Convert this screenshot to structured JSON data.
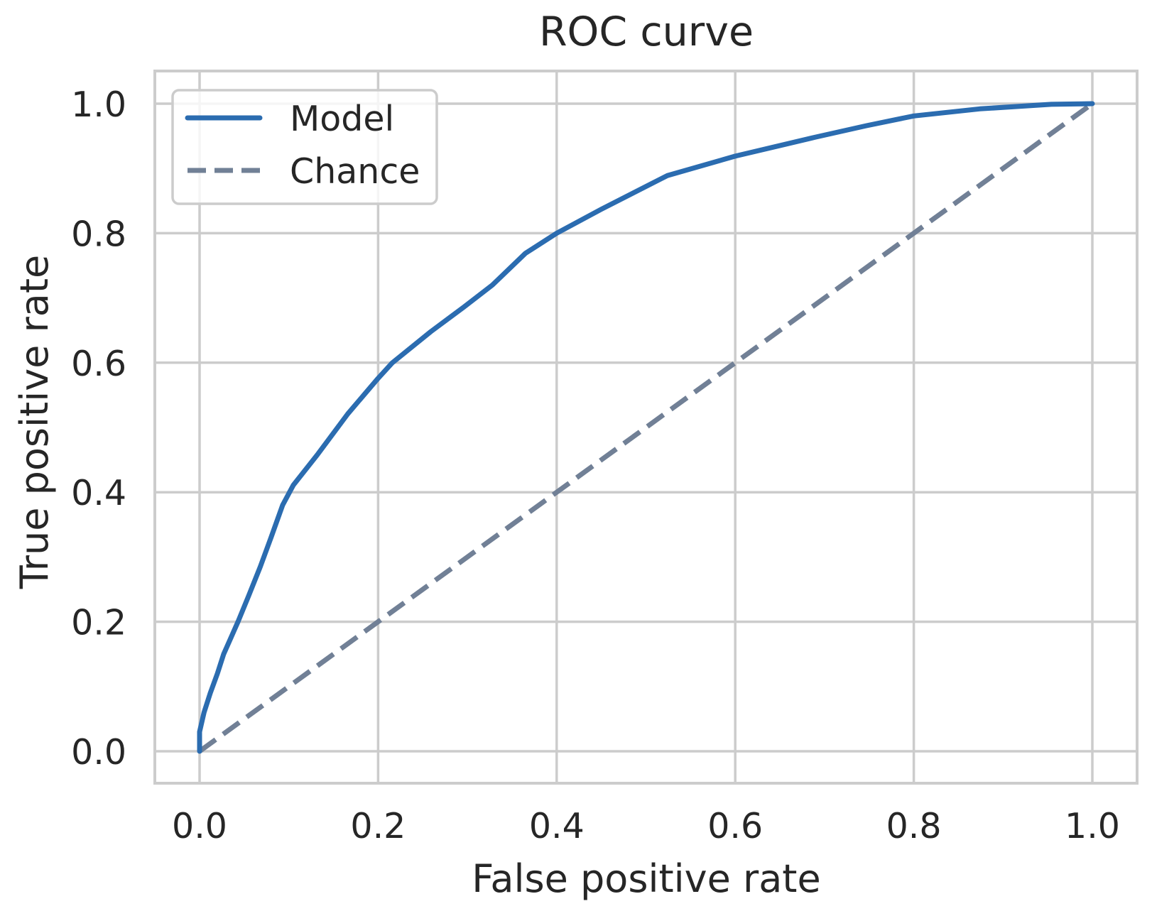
{
  "chart_data": {
    "type": "line",
    "title": "ROC curve",
    "xlabel": "False positive rate",
    "ylabel": "True positive rate",
    "xlim": [
      -0.05,
      1.05
    ],
    "ylim": [
      -0.05,
      1.05
    ],
    "xticks": [
      0.0,
      0.2,
      0.4,
      0.6,
      0.8,
      1.0
    ],
    "yticks": [
      0.0,
      0.2,
      0.4,
      0.6,
      0.8,
      1.0
    ],
    "xtick_labels": [
      "0.0",
      "0.2",
      "0.4",
      "0.6",
      "0.8",
      "1.0"
    ],
    "ytick_labels": [
      "0.0",
      "0.2",
      "0.4",
      "0.6",
      "0.8",
      "1.0"
    ],
    "grid": true,
    "legend": {
      "placement": "top-left",
      "entries": [
        {
          "label": "Model",
          "style": "solid",
          "color": "#2b6cb0"
        },
        {
          "label": "Chance",
          "style": "dashed",
          "color": "#718096"
        }
      ]
    },
    "series": [
      {
        "name": "Model",
        "style": "solid",
        "color": "#2b6cb0",
        "x": [
          0.0,
          0.0,
          0.005,
          0.012,
          0.02,
          0.027,
          0.035,
          0.043,
          0.055,
          0.068,
          0.08,
          0.093,
          0.105,
          0.132,
          0.166,
          0.2,
          0.216,
          0.259,
          0.296,
          0.328,
          0.365,
          0.4,
          0.45,
          0.524,
          0.6,
          0.649,
          0.689,
          0.747,
          0.8,
          0.874,
          0.954,
          1.0
        ],
        "y": [
          0.0,
          0.03,
          0.06,
          0.09,
          0.12,
          0.15,
          0.175,
          0.2,
          0.24,
          0.285,
          0.33,
          0.38,
          0.411,
          0.458,
          0.521,
          0.576,
          0.6,
          0.648,
          0.686,
          0.72,
          0.769,
          0.8,
          0.837,
          0.889,
          0.919,
          0.935,
          0.948,
          0.966,
          0.981,
          0.992,
          0.999,
          1.0
        ]
      },
      {
        "name": "Chance",
        "style": "dashed",
        "color": "#718096",
        "x": [
          0.0,
          1.0
        ],
        "y": [
          0.0,
          1.0
        ]
      }
    ]
  }
}
